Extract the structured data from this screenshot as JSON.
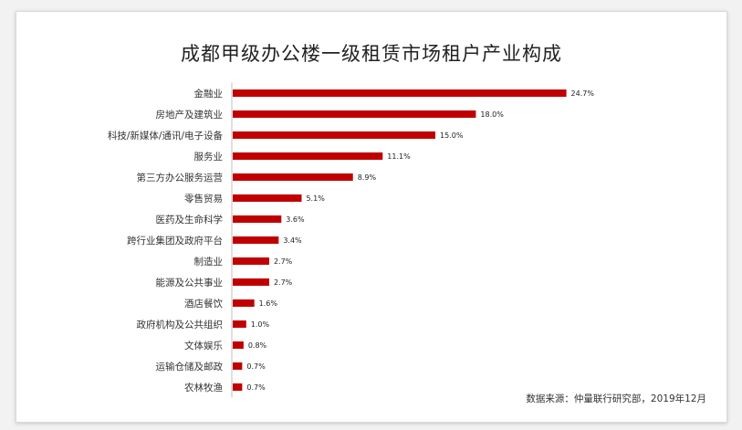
{
  "chart_data": {
    "type": "bar",
    "orientation": "horizontal",
    "title": "成都甲级办公楼一级租赁市场租户产业构成",
    "categories": [
      "金融业",
      "房地产及建筑业",
      "科技/新媒体/通讯/电子设备",
      "服务业",
      "第三方办公服务运营",
      "零售贸易",
      "医药及生命科学",
      "跨行业集团及政府平台",
      "制造业",
      "能源及公共事业",
      "酒店餐饮",
      "政府机构及公共组织",
      "文体娱乐",
      "运输仓储及邮政",
      "农林牧渔"
    ],
    "values": [
      24.7,
      18.0,
      15.0,
      11.1,
      8.9,
      5.1,
      3.6,
      3.4,
      2.7,
      2.7,
      1.6,
      1.0,
      0.8,
      0.7,
      0.7
    ],
    "value_labels": [
      "24.7%",
      "18.0%",
      "15.0%",
      "11.1%",
      "8.9%",
      "5.1%",
      "3.6%",
      "3.4%",
      "2.7%",
      "2.7%",
      "1.6%",
      "1.0%",
      "0.8%",
      "0.7%",
      "0.7%"
    ],
    "xlim": [
      0,
      25
    ],
    "grid": false,
    "bar_color": "#c00000",
    "axis_color": "#bfbfbf"
  },
  "source": "数据来源：仲量联行研究部，2019年12月"
}
